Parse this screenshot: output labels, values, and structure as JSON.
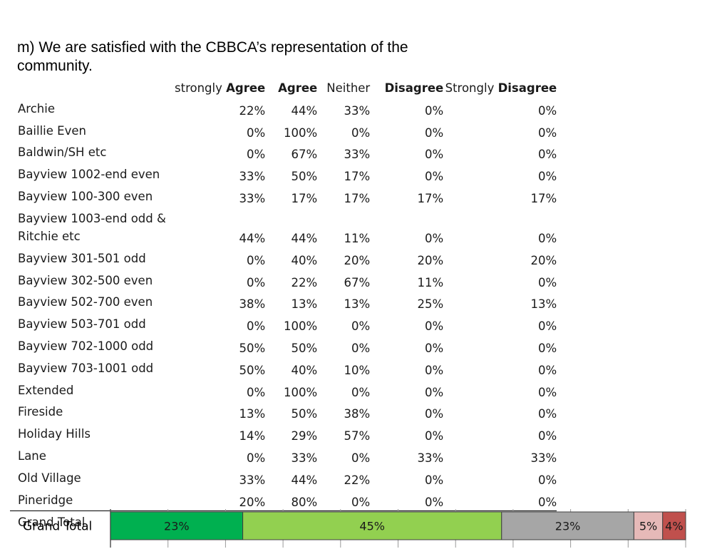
{
  "title": "m) We are satisfied with the CBBCA’s representation of the community.",
  "columns": [
    {
      "pre": "strongly ",
      "bold": "Agree"
    },
    {
      "pre": "",
      "bold": "Agree"
    },
    {
      "pre": "Neither",
      "bold": ""
    },
    {
      "pre": "",
      "bold": "Disagree"
    },
    {
      "pre": "Strongly ",
      "bold": "Disagree"
    }
  ],
  "rows": [
    {
      "label": "Archie",
      "values": [
        "22%",
        "44%",
        "33%",
        "0%",
        "0%"
      ]
    },
    {
      "label": "Baillie Even",
      "values": [
        "0%",
        "100%",
        "0%",
        "0%",
        "0%"
      ]
    },
    {
      "label": "Baldwin/SH etc",
      "values": [
        "0%",
        "67%",
        "33%",
        "0%",
        "0%"
      ]
    },
    {
      "label": "Bayview 1002-end even",
      "values": [
        "33%",
        "50%",
        "17%",
        "0%",
        "0%"
      ]
    },
    {
      "label": "Bayview 100-300 even",
      "values": [
        "33%",
        "17%",
        "17%",
        "17%",
        "17%"
      ]
    },
    {
      "label": "Bayview 1003-end odd & Ritchie etc",
      "values": [
        "44%",
        "44%",
        "11%",
        "0%",
        "0%"
      ]
    },
    {
      "label": "Bayview 301-501 odd",
      "values": [
        "0%",
        "40%",
        "20%",
        "20%",
        "20%"
      ]
    },
    {
      "label": "Bayview 302-500 even",
      "values": [
        "0%",
        "22%",
        "67%",
        "11%",
        "0%"
      ]
    },
    {
      "label": "Bayview 502-700 even",
      "values": [
        "38%",
        "13%",
        "13%",
        "25%",
        "13%"
      ]
    },
    {
      "label": "Bayview 503-701 odd",
      "values": [
        "0%",
        "100%",
        "0%",
        "0%",
        "0%"
      ]
    },
    {
      "label": "Bayview 702-1000 odd",
      "values": [
        "50%",
        "50%",
        "0%",
        "0%",
        "0%"
      ]
    },
    {
      "label": "Bayview 703-1001 odd",
      "values": [
        "50%",
        "40%",
        "10%",
        "0%",
        "0%"
      ]
    },
    {
      "label": "Extended",
      "values": [
        "0%",
        "100%",
        "0%",
        "0%",
        "0%"
      ]
    },
    {
      "label": "Fireside",
      "values": [
        "13%",
        "50%",
        "38%",
        "0%",
        "0%"
      ]
    },
    {
      "label": "Holiday Hills",
      "values": [
        "14%",
        "29%",
        "57%",
        "0%",
        "0%"
      ]
    },
    {
      "label": "Lane",
      "values": [
        "0%",
        "33%",
        "0%",
        "33%",
        "33%"
      ]
    },
    {
      "label": "Old Village",
      "values": [
        "33%",
        "44%",
        "22%",
        "0%",
        "0%"
      ]
    },
    {
      "label": "Pineridge",
      "values": [
        "20%",
        "80%",
        "0%",
        "0%",
        "0%"
      ]
    }
  ],
  "total_row": {
    "label": "Grand Total",
    "values": [
      "23%",
      "45%",
      "23%",
      "5%",
      "4%"
    ]
  },
  "chart_data": {
    "type": "bar",
    "orientation": "horizontal-stacked-100",
    "categories": [
      "Grand Total"
    ],
    "series": [
      {
        "values": [
          23
        ],
        "label": "23%",
        "color": "#00b050"
      },
      {
        "values": [
          45
        ],
        "label": "45%",
        "color": "#92d050"
      },
      {
        "values": [
          23
        ],
        "label": "23%",
        "color": "#a6a6a6"
      },
      {
        "values": [
          5
        ],
        "label": "5%",
        "color": "#e6b9b8"
      },
      {
        "values": [
          4
        ],
        "label": "4%",
        "color": "#c0504d"
      }
    ],
    "xlim": [
      0,
      100
    ],
    "grid": true
  }
}
